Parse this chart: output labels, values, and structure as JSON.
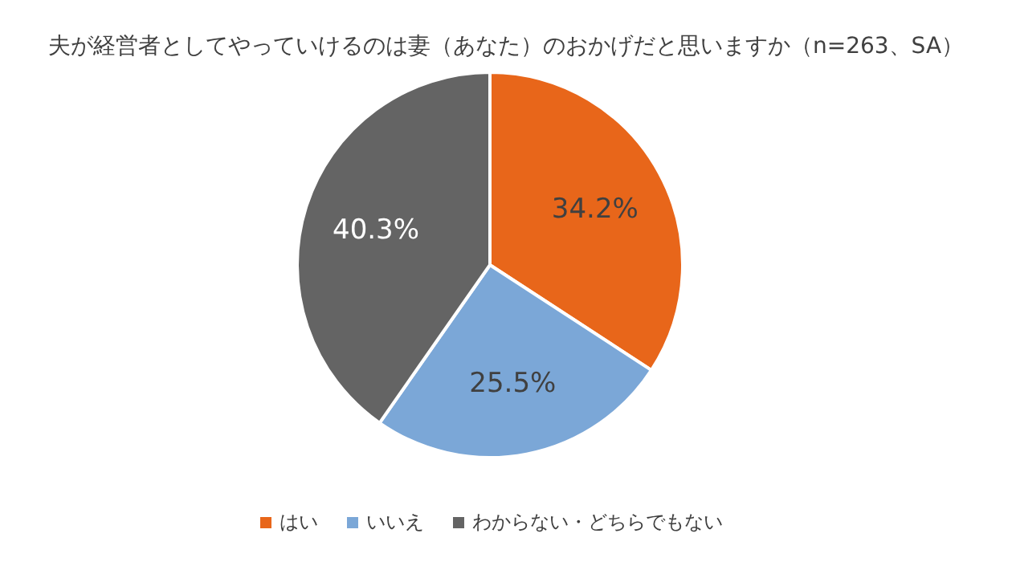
{
  "chart_data": {
    "type": "pie",
    "title": "夫が経営者としてやっていけるのは妻（あなた）のおかげだと思いますか（n=263、SA）",
    "categories": [
      "はい",
      "いいえ",
      "わからない・どちらでもない"
    ],
    "values": [
      34.2,
      25.5,
      40.3
    ],
    "value_labels": [
      "34.2%",
      "25.5%",
      "40.3%"
    ],
    "colors": [
      "#e8661a",
      "#7ba7d7",
      "#646464"
    ],
    "legend": "bottom"
  }
}
